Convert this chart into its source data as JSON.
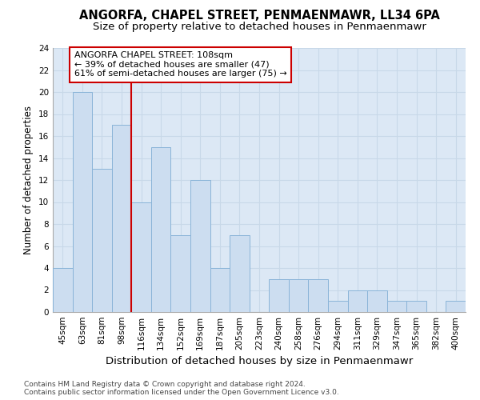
{
  "title1": "ANGORFA, CHAPEL STREET, PENMAENMAWR, LL34 6PA",
  "title2": "Size of property relative to detached houses in Penmaenmawr",
  "xlabel": "Distribution of detached houses by size in Penmaenmawr",
  "ylabel": "Number of detached properties",
  "categories": [
    "45sqm",
    "63sqm",
    "81sqm",
    "98sqm",
    "116sqm",
    "134sqm",
    "152sqm",
    "169sqm",
    "187sqm",
    "205sqm",
    "223sqm",
    "240sqm",
    "258sqm",
    "276sqm",
    "294sqm",
    "311sqm",
    "329sqm",
    "347sqm",
    "365sqm",
    "382sqm",
    "400sqm"
  ],
  "values": [
    4,
    20,
    13,
    17,
    10,
    15,
    7,
    12,
    4,
    7,
    0,
    3,
    3,
    3,
    1,
    2,
    2,
    1,
    1,
    0,
    1
  ],
  "bar_color": "#ccddf0",
  "bar_edge_color": "#8ab4d8",
  "red_line_x": 3.5,
  "annotation_text_line1": "ANGORFA CHAPEL STREET: 108sqm",
  "annotation_text_line2": "← 39% of detached houses are smaller (47)",
  "annotation_text_line3": "61% of semi-detached houses are larger (75) →",
  "annotation_box_facecolor": "#ffffff",
  "annotation_box_edgecolor": "#cc0000",
  "red_line_color": "#cc0000",
  "ylim": [
    0,
    24
  ],
  "yticks": [
    0,
    2,
    4,
    6,
    8,
    10,
    12,
    14,
    16,
    18,
    20,
    22,
    24
  ],
  "grid_color": "#c8d8e8",
  "background_color": "#dce8f5",
  "footer_text": "Contains HM Land Registry data © Crown copyright and database right 2024.\nContains public sector information licensed under the Open Government Licence v3.0.",
  "title1_fontsize": 10.5,
  "title2_fontsize": 9.5,
  "xlabel_fontsize": 9.5,
  "ylabel_fontsize": 8.5,
  "tick_fontsize": 7.5,
  "annotation_fontsize": 8,
  "footer_fontsize": 6.5
}
